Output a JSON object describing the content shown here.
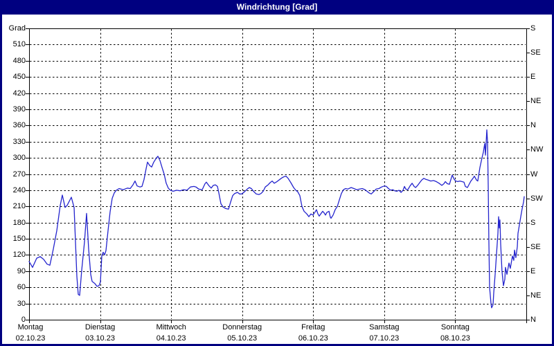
{
  "window": {
    "title": "Windrichtung [Grad]"
  },
  "colors": {
    "titlebar": "#000080",
    "frame": "#000080",
    "grid": "#000000",
    "axis_text": "#000000",
    "line": "#2323cd"
  },
  "chart_data": {
    "type": "line",
    "title": "Windrichtung [Grad]",
    "ylabel": "Grad",
    "grid": true,
    "y_axis_left": {
      "min": 0,
      "max": 540,
      "tick_step": 30,
      "tick_labels": [
        "0",
        "30",
        "60",
        "90",
        "120",
        "150",
        "180",
        "210",
        "240",
        "270",
        "300",
        "330",
        "360",
        "390",
        "420",
        "450",
        "480",
        "510"
      ]
    },
    "y_axis_right": {
      "tick_step": 45,
      "compass": [
        {
          "deg": 540,
          "label": "S"
        },
        {
          "deg": 495,
          "label": "SE"
        },
        {
          "deg": 450,
          "label": "E"
        },
        {
          "deg": 405,
          "label": "NE"
        },
        {
          "deg": 360,
          "label": "N"
        },
        {
          "deg": 315,
          "label": "NW"
        },
        {
          "deg": 270,
          "label": "W"
        },
        {
          "deg": 225,
          "label": "SW"
        },
        {
          "deg": 180,
          "label": "S"
        },
        {
          "deg": 135,
          "label": "SE"
        },
        {
          "deg": 90,
          "label": "E"
        },
        {
          "deg": 45,
          "label": "NE"
        },
        {
          "deg": 0,
          "label": "N"
        }
      ]
    },
    "x_axis": {
      "unit": "days",
      "span_days": 7,
      "days": [
        {
          "day": "Montag",
          "date": "02.10.23"
        },
        {
          "day": "Dienstag",
          "date": "03.10.23"
        },
        {
          "day": "Mittwoch",
          "date": "04.10.23"
        },
        {
          "day": "Donnerstag",
          "date": "05.10.23"
        },
        {
          "day": "Freitag",
          "date": "06.10.23"
        },
        {
          "day": "Samstag",
          "date": "07.10.23"
        },
        {
          "day": "Sonntag",
          "date": "08.10.23"
        }
      ]
    },
    "series": [
      {
        "name": "Windrichtung",
        "points": [
          [
            0,
            108
          ],
          [
            0.049,
            97
          ],
          [
            0.107,
            114
          ],
          [
            0.156,
            117
          ],
          [
            0.205,
            112
          ],
          [
            0.253,
            103
          ],
          [
            0.292,
            101
          ],
          [
            0.341,
            131
          ],
          [
            0.39,
            165
          ],
          [
            0.439,
            212
          ],
          [
            0.468,
            231
          ],
          [
            0.507,
            208
          ],
          [
            0.536,
            212
          ],
          [
            0.595,
            227
          ],
          [
            0.634,
            208
          ],
          [
            0.653,
            144
          ],
          [
            0.673,
            80
          ],
          [
            0.692,
            47
          ],
          [
            0.712,
            45
          ],
          [
            0.741,
            92
          ],
          [
            0.78,
            144
          ],
          [
            0.809,
            197
          ],
          [
            0.838,
            131
          ],
          [
            0.868,
            84
          ],
          [
            0.887,
            71
          ],
          [
            0.926,
            67
          ],
          [
            0.955,
            62
          ],
          [
            0.985,
            63
          ],
          [
            1.004,
            70
          ],
          [
            1.024,
            118
          ],
          [
            1.043,
            125
          ],
          [
            1.063,
            120
          ],
          [
            1.082,
            128
          ],
          [
            1.111,
            165
          ],
          [
            1.141,
            200
          ],
          [
            1.17,
            225
          ],
          [
            1.199,
            235
          ],
          [
            1.228,
            240
          ],
          [
            1.267,
            243
          ],
          [
            1.326,
            241
          ],
          [
            1.384,
            244
          ],
          [
            1.423,
            243
          ],
          [
            1.462,
            250
          ],
          [
            1.492,
            257
          ],
          [
            1.521,
            248
          ],
          [
            1.56,
            246
          ],
          [
            1.589,
            247
          ],
          [
            1.618,
            260
          ],
          [
            1.648,
            280
          ],
          [
            1.667,
            292
          ],
          [
            1.696,
            286
          ],
          [
            1.726,
            283
          ],
          [
            1.755,
            292
          ],
          [
            1.794,
            300
          ],
          [
            1.813,
            303
          ],
          [
            1.843,
            295
          ],
          [
            1.872,
            282
          ],
          [
            1.901,
            270
          ],
          [
            1.93,
            253
          ],
          [
            1.96,
            244
          ],
          [
            1.989,
            240
          ],
          [
            2.028,
            238
          ],
          [
            2.077,
            240
          ],
          [
            2.125,
            239
          ],
          [
            2.174,
            241
          ],
          [
            2.223,
            240
          ],
          [
            2.272,
            246
          ],
          [
            2.32,
            247
          ],
          [
            2.35,
            246
          ],
          [
            2.389,
            242
          ],
          [
            2.437,
            241
          ],
          [
            2.476,
            252
          ],
          [
            2.496,
            255
          ],
          [
            2.535,
            248
          ],
          [
            2.564,
            244
          ],
          [
            2.593,
            249
          ],
          [
            2.623,
            250
          ],
          [
            2.652,
            247
          ],
          [
            2.671,
            235
          ],
          [
            2.701,
            215
          ],
          [
            2.73,
            209
          ],
          [
            2.769,
            206
          ],
          [
            2.808,
            205
          ],
          [
            2.837,
            218
          ],
          [
            2.866,
            230
          ],
          [
            2.896,
            234
          ],
          [
            2.935,
            236
          ],
          [
            2.964,
            233
          ],
          [
            2.993,
            233
          ],
          [
            3.032,
            237
          ],
          [
            3.071,
            242
          ],
          [
            3.1,
            245
          ],
          [
            3.13,
            243
          ],
          [
            3.159,
            238
          ],
          [
            3.198,
            233
          ],
          [
            3.237,
            232
          ],
          [
            3.266,
            234
          ],
          [
            3.295,
            238
          ],
          [
            3.325,
            246
          ],
          [
            3.364,
            250
          ],
          [
            3.393,
            254
          ],
          [
            3.422,
            257
          ],
          [
            3.451,
            253
          ],
          [
            3.49,
            256
          ],
          [
            3.529,
            260
          ],
          [
            3.559,
            263
          ],
          [
            3.588,
            265
          ],
          [
            3.617,
            266
          ],
          [
            3.646,
            262
          ],
          [
            3.685,
            254
          ],
          [
            3.724,
            245
          ],
          [
            3.754,
            240
          ],
          [
            3.783,
            237
          ],
          [
            3.812,
            230
          ],
          [
            3.841,
            210
          ],
          [
            3.871,
            201
          ],
          [
            3.91,
            196
          ],
          [
            3.939,
            191
          ],
          [
            3.968,
            196
          ],
          [
            3.997,
            194
          ],
          [
            4.027,
            200
          ],
          [
            4.046,
            204
          ],
          [
            4.066,
            196
          ],
          [
            4.085,
            192
          ],
          [
            4.105,
            196
          ],
          [
            4.134,
            201
          ],
          [
            4.153,
            198
          ],
          [
            4.173,
            194
          ],
          [
            4.192,
            199
          ],
          [
            4.222,
            201
          ],
          [
            4.241,
            190
          ],
          [
            4.251,
            188
          ],
          [
            4.28,
            194
          ],
          [
            4.309,
            204
          ],
          [
            4.339,
            210
          ],
          [
            4.368,
            222
          ],
          [
            4.397,
            234
          ],
          [
            4.426,
            241
          ],
          [
            4.456,
            243
          ],
          [
            4.485,
            242
          ],
          [
            4.534,
            245
          ],
          [
            4.573,
            243
          ],
          [
            4.612,
            241
          ],
          [
            4.651,
            242
          ],
          [
            4.69,
            243
          ],
          [
            4.729,
            241
          ],
          [
            4.758,
            238
          ],
          [
            4.787,
            235
          ],
          [
            4.817,
            233
          ],
          [
            4.856,
            238
          ],
          [
            4.885,
            242
          ],
          [
            4.924,
            243
          ],
          [
            4.963,
            246
          ],
          [
            5.002,
            248
          ],
          [
            5.031,
            247
          ],
          [
            5.06,
            243
          ],
          [
            5.09,
            240
          ],
          [
            5.119,
            241
          ],
          [
            5.148,
            239
          ],
          [
            5.177,
            238
          ],
          [
            5.207,
            240
          ],
          [
            5.236,
            236
          ],
          [
            5.265,
            240
          ],
          [
            5.285,
            247
          ],
          [
            5.304,
            242
          ],
          [
            5.333,
            241
          ],
          [
            5.363,
            248
          ],
          [
            5.392,
            253
          ],
          [
            5.421,
            247
          ],
          [
            5.441,
            245
          ],
          [
            5.47,
            249
          ],
          [
            5.499,
            254
          ],
          [
            5.528,
            259
          ],
          [
            5.557,
            262
          ],
          [
            5.587,
            260
          ],
          [
            5.616,
            259
          ],
          [
            5.655,
            257
          ],
          [
            5.694,
            258
          ],
          [
            5.733,
            256
          ],
          [
            5.772,
            253
          ],
          [
            5.811,
            249
          ],
          [
            5.84,
            252
          ],
          [
            5.86,
            256
          ],
          [
            5.889,
            252
          ],
          [
            5.918,
            251
          ],
          [
            5.957,
            268
          ],
          [
            5.986,
            260
          ],
          [
            6.006,
            257
          ],
          [
            6.035,
            256
          ],
          [
            6.064,
            257
          ],
          [
            6.093,
            256
          ],
          [
            6.123,
            255
          ],
          [
            6.142,
            247
          ],
          [
            6.171,
            245
          ],
          [
            6.2,
            252
          ],
          [
            6.22,
            257
          ],
          [
            6.249,
            262
          ],
          [
            6.269,
            266
          ],
          [
            6.298,
            259
          ],
          [
            6.317,
            257
          ],
          [
            6.347,
            282
          ],
          [
            6.376,
            300
          ],
          [
            6.395,
            310
          ],
          [
            6.415,
            327
          ],
          [
            6.425,
            305
          ],
          [
            6.444,
            352
          ],
          [
            6.454,
            330
          ],
          [
            6.464,
            250
          ],
          [
            6.473,
            150
          ],
          [
            6.483,
            60
          ],
          [
            6.503,
            30
          ],
          [
            6.512,
            22
          ],
          [
            6.532,
            28
          ],
          [
            6.542,
            50
          ],
          [
            6.561,
            84
          ],
          [
            6.58,
            120
          ],
          [
            6.6,
            160
          ],
          [
            6.61,
            191
          ],
          [
            6.62,
            170
          ],
          [
            6.629,
            185
          ],
          [
            6.639,
            140
          ],
          [
            6.658,
            90
          ],
          [
            6.678,
            63
          ],
          [
            6.698,
            75
          ],
          [
            6.707,
            97
          ],
          [
            6.727,
            84
          ],
          [
            6.756,
            105
          ],
          [
            6.775,
            95
          ],
          [
            6.805,
            118
          ],
          [
            6.824,
            110
          ],
          [
            6.834,
            129
          ],
          [
            6.853,
            115
          ],
          [
            6.873,
            135
          ],
          [
            6.883,
            160
          ],
          [
            6.902,
            175
          ],
          [
            6.922,
            191
          ],
          [
            6.941,
            205
          ],
          [
            6.961,
            218
          ],
          [
            6.971,
            228
          ]
        ]
      }
    ]
  }
}
